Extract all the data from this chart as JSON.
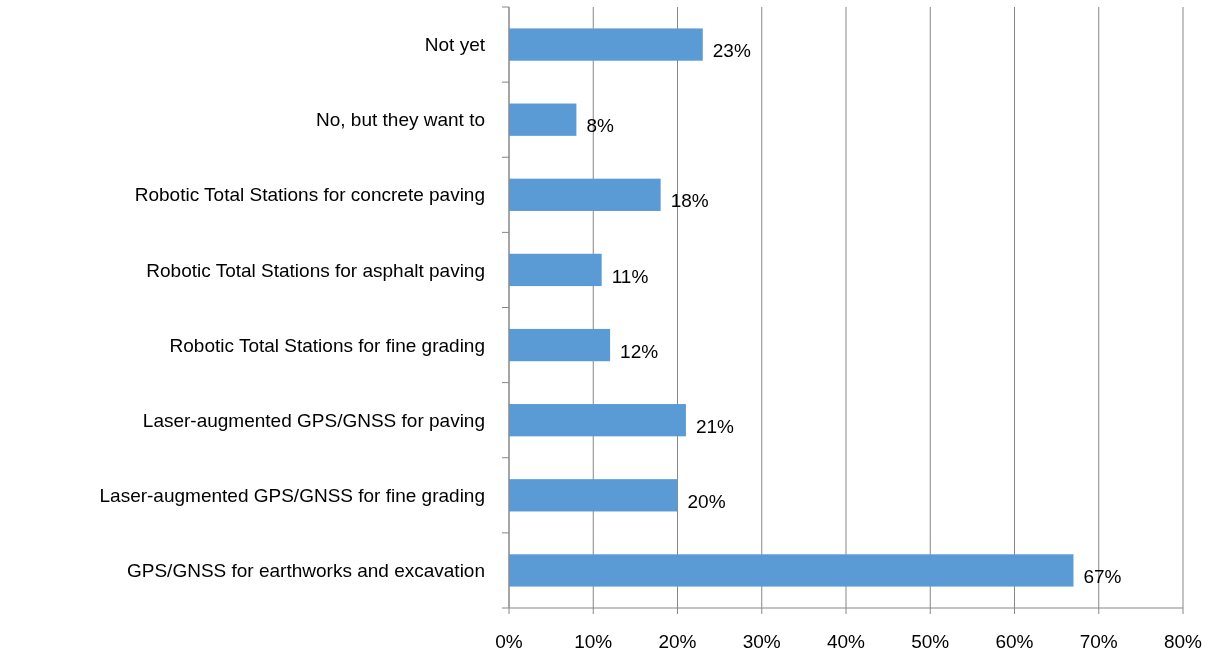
{
  "chart_data": {
    "type": "bar",
    "orientation": "horizontal",
    "categories": [
      "Not yet",
      "No, but they want to",
      "Robotic Total Stations for concrete paving",
      "Robotic Total Stations for asphalt paving",
      "Robotic Total Stations for fine grading",
      "Laser-augmented GPS/GNSS for paving",
      "Laser-augmented GPS/GNSS for fine grading",
      "GPS/GNSS for earthworks and excavation"
    ],
    "values": [
      23,
      8,
      18,
      11,
      12,
      21,
      20,
      67
    ],
    "value_labels": [
      "23%",
      "8%",
      "18%",
      "11%",
      "12%",
      "21%",
      "20%",
      "67%"
    ],
    "color": "#5b9bd5",
    "xlim": [
      0,
      80
    ],
    "xticks": [
      {
        "value": 0,
        "label": "0%"
      },
      {
        "value": 10,
        "label": "10%"
      },
      {
        "value": 20,
        "label": "20%"
      },
      {
        "value": 30,
        "label": "30%"
      },
      {
        "value": 40,
        "label": "40%"
      },
      {
        "value": 50,
        "label": "50%"
      },
      {
        "value": 60,
        "label": "60%"
      },
      {
        "value": 70,
        "label": "70%"
      },
      {
        "value": 80,
        "label": "80%"
      }
    ],
    "grid": "x"
  }
}
